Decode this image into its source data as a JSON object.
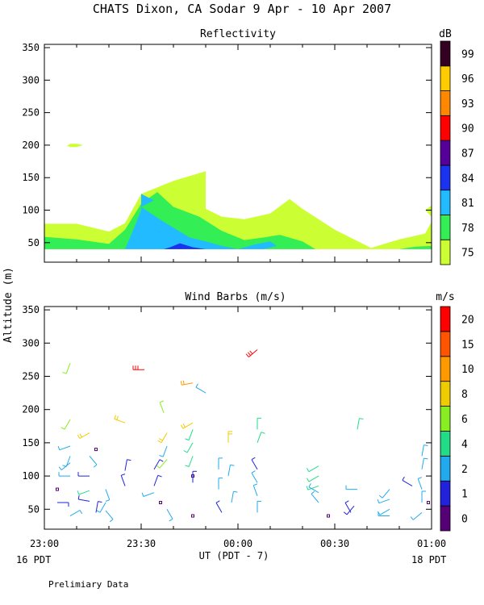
{
  "figure": {
    "title": "CHATS Dixon, CA  Sodar   9 Apr - 10 Apr 2007",
    "ylabel": "Altitude (m)",
    "xlabel": "UT  (PDT - 7)",
    "left_date": "16 PDT",
    "right_date": "18 PDT",
    "footer": "Prelimiary Data",
    "x_ticks": [
      "23:00",
      "23:30",
      "00:00",
      "00:30",
      "01:00"
    ]
  },
  "chart_data": [
    {
      "type": "heatmap",
      "title": "Reflectivity",
      "colorbar_unit": "dB",
      "x_ticks": [
        "23:00",
        "23:30",
        "00:00",
        "00:30",
        "01:00"
      ],
      "xlim_minutes": [
        0,
        120
      ],
      "y_ticks": [
        50,
        100,
        150,
        200,
        250,
        300,
        350
      ],
      "ylim": [
        20,
        355
      ],
      "grid": false,
      "colorbar": {
        "levels": [
          75,
          78,
          81,
          84,
          87,
          90,
          93,
          96,
          99
        ],
        "colors": [
          "#ccff33",
          "#33ee55",
          "#22bbff",
          "#1a33ee",
          "#550099",
          "#ff0000",
          "#ff8800",
          "#ffcc00",
          "#330022"
        ]
      },
      "contours": [
        {
          "level": 75,
          "polygon": [
            [
              0,
              40
            ],
            [
              0,
              79
            ],
            [
              10,
              79
            ],
            [
              20,
              67
            ],
            [
              25,
              80
            ],
            [
              30,
              125
            ],
            [
              40,
              145
            ],
            [
              50,
              160
            ],
            [
              50,
              102
            ],
            [
              55,
              90
            ],
            [
              62,
              86
            ],
            [
              70,
              95
            ],
            [
              76,
              117
            ],
            [
              80,
              102
            ],
            [
              90,
              70
            ],
            [
              102,
              40
            ]
          ]
        },
        {
          "level": 75,
          "polygon": [
            [
              7,
              199
            ],
            [
              8,
              202
            ],
            [
              10,
              202
            ],
            [
              12,
              200
            ],
            [
              10,
              197
            ],
            [
              8,
              197
            ]
          ]
        },
        {
          "level": 75,
          "polygon": [
            [
              100,
              40
            ],
            [
              110,
              55
            ],
            [
              118,
              64
            ],
            [
              120,
              82
            ],
            [
              120,
              40
            ]
          ]
        },
        {
          "level": 75,
          "polygon": [
            [
              118,
              100
            ],
            [
              120,
              107
            ],
            [
              120,
              90
            ]
          ]
        },
        {
          "level": 78,
          "polygon": [
            [
              0,
              40
            ],
            [
              0,
              59
            ],
            [
              10,
              55
            ],
            [
              20,
              48
            ],
            [
              25,
              70
            ],
            [
              30,
              110
            ],
            [
              35,
              128
            ],
            [
              40,
              105
            ],
            [
              48,
              90
            ],
            [
              55,
              68
            ],
            [
              62,
              54
            ],
            [
              68,
              58
            ],
            [
              73,
              62
            ],
            [
              80,
              52
            ],
            [
              84,
              40
            ]
          ]
        },
        {
          "level": 78,
          "polygon": [
            [
              110,
              40
            ],
            [
              115,
              44
            ],
            [
              120,
              45
            ],
            [
              120,
              40
            ]
          ]
        },
        {
          "level": 81,
          "polygon": [
            [
              25,
              40
            ],
            [
              28,
              75
            ],
            [
              30,
              100
            ],
            [
              30,
              125
            ],
            [
              34,
              115
            ],
            [
              30,
              105
            ],
            [
              36,
              85
            ],
            [
              45,
              58
            ],
            [
              50,
              52
            ],
            [
              55,
              45
            ],
            [
              60,
              40
            ],
            [
              65,
              47
            ],
            [
              70,
              52
            ],
            [
              72,
              45
            ],
            [
              68,
              40
            ]
          ]
        },
        {
          "level": 84,
          "polygon": [
            [
              37,
              40
            ],
            [
              39,
              43
            ],
            [
              42,
              49
            ],
            [
              46,
              43
            ],
            [
              50,
              40
            ]
          ]
        }
      ]
    },
    {
      "type": "scatter",
      "title": "Wind Barbs (m/s)",
      "colorbar_unit": "m/s",
      "x_ticks": [
        "23:00",
        "23:30",
        "00:00",
        "00:30",
        "01:00"
      ],
      "xlim_minutes": [
        0,
        120
      ],
      "y_ticks": [
        50,
        100,
        150,
        200,
        250,
        300,
        350
      ],
      "ylim": [
        20,
        355
      ],
      "grid": false,
      "colorbar": {
        "labels": [
          "0",
          "1",
          "2",
          "4",
          "6",
          "8",
          "10",
          "15",
          "20"
        ],
        "colors": [
          "#550077",
          "#2222dd",
          "#22aaee",
          "#22dd88",
          "#88ee22",
          "#eecc00",
          "#ff9900",
          "#ff5500",
          "#ff0000"
        ]
      },
      "barbs": [
        {
          "t": 4,
          "alt": 80,
          "speed": 0,
          "dir": 0
        },
        {
          "t": 4,
          "alt": 60,
          "speed": 1,
          "dir": 90
        },
        {
          "t": 8,
          "alt": 270,
          "speed": 6,
          "dir": 200
        },
        {
          "t": 8,
          "alt": 185,
          "speed": 6,
          "dir": 210
        },
        {
          "t": 8,
          "alt": 145,
          "speed": 3,
          "dir": 250
        },
        {
          "t": 8,
          "alt": 130,
          "speed": 3,
          "dir": 200
        },
        {
          "t": 8,
          "alt": 120,
          "speed": 3,
          "dir": 230
        },
        {
          "t": 8,
          "alt": 100,
          "speed": 3,
          "dir": 270
        },
        {
          "t": 8,
          "alt": 40,
          "speed": 3,
          "dir": 60
        },
        {
          "t": 14,
          "alt": 165,
          "speed": 8,
          "dir": 240
        },
        {
          "t": 14,
          "alt": 130,
          "speed": 3,
          "dir": 140
        },
        {
          "t": 14,
          "alt": 100,
          "speed": 1,
          "dir": 270
        },
        {
          "t": 14,
          "alt": 78,
          "speed": 5,
          "dir": 250
        },
        {
          "t": 14,
          "alt": 62,
          "speed": 1,
          "dir": 280
        },
        {
          "t": 16,
          "alt": 140,
          "speed": 0,
          "dir": 0
        },
        {
          "t": 16,
          "alt": 45,
          "speed": 1,
          "dir": 10
        },
        {
          "t": 19,
          "alt": 80,
          "speed": 3,
          "dir": 160
        },
        {
          "t": 19,
          "alt": 60,
          "speed": 3,
          "dir": 210
        },
        {
          "t": 19,
          "alt": 48,
          "speed": 3,
          "dir": 140
        },
        {
          "t": 25,
          "alt": 180,
          "speed": 8,
          "dir": 290
        },
        {
          "t": 25,
          "alt": 108,
          "speed": 1,
          "dir": 10
        },
        {
          "t": 25,
          "alt": 85,
          "speed": 1,
          "dir": 340
        },
        {
          "t": 31,
          "alt": 260,
          "speed": 20,
          "dir": 270
        },
        {
          "t": 34,
          "alt": 110,
          "speed": 1,
          "dir": 30
        },
        {
          "t": 34,
          "alt": 85,
          "speed": 1,
          "dir": 20
        },
        {
          "t": 34,
          "alt": 75,
          "speed": 3,
          "dir": 250
        },
        {
          "t": 36,
          "alt": 60,
          "speed": 0,
          "dir": 0
        },
        {
          "t": 37,
          "alt": 195,
          "speed": 6,
          "dir": 340
        },
        {
          "t": 38,
          "alt": 165,
          "speed": 8,
          "dir": 210
        },
        {
          "t": 38,
          "alt": 145,
          "speed": 3,
          "dir": 200
        },
        {
          "t": 38,
          "alt": 125,
          "speed": 6,
          "dir": 220
        },
        {
          "t": 38,
          "alt": 50,
          "speed": 3,
          "dir": 150
        },
        {
          "t": 46,
          "alt": 240,
          "speed": 10,
          "dir": 260
        },
        {
          "t": 46,
          "alt": 180,
          "speed": 8,
          "dir": 240
        },
        {
          "t": 46,
          "alt": 170,
          "speed": 4,
          "dir": 200
        },
        {
          "t": 46,
          "alt": 150,
          "speed": 4,
          "dir": 210
        },
        {
          "t": 46,
          "alt": 130,
          "speed": 4,
          "dir": 200
        },
        {
          "t": 46,
          "alt": 100,
          "speed": 0,
          "dir": 0
        },
        {
          "t": 46,
          "alt": 90,
          "speed": 1,
          "dir": 0
        },
        {
          "t": 46,
          "alt": 40,
          "speed": 0,
          "dir": 0
        },
        {
          "t": 50,
          "alt": 225,
          "speed": 2,
          "dir": 300
        },
        {
          "t": 54,
          "alt": 110,
          "speed": 2,
          "dir": 0
        },
        {
          "t": 54,
          "alt": 80,
          "speed": 2,
          "dir": 0
        },
        {
          "t": 55,
          "alt": 45,
          "speed": 1,
          "dir": 330
        },
        {
          "t": 57,
          "alt": 150,
          "speed": 8,
          "dir": 0
        },
        {
          "t": 57,
          "alt": 100,
          "speed": 3,
          "dir": 10
        },
        {
          "t": 58,
          "alt": 60,
          "speed": 3,
          "dir": 10
        },
        {
          "t": 66,
          "alt": 290,
          "speed": 20,
          "dir": 230
        },
        {
          "t": 66,
          "alt": 170,
          "speed": 4,
          "dir": 0
        },
        {
          "t": 66,
          "alt": 150,
          "speed": 4,
          "dir": 20
        },
        {
          "t": 66,
          "alt": 110,
          "speed": 1,
          "dir": 330
        },
        {
          "t": 66,
          "alt": 90,
          "speed": 3,
          "dir": 330
        },
        {
          "t": 66,
          "alt": 70,
          "speed": 3,
          "dir": 340
        },
        {
          "t": 66,
          "alt": 45,
          "speed": 2,
          "dir": 0
        },
        {
          "t": 85,
          "alt": 115,
          "speed": 4,
          "dir": 240
        },
        {
          "t": 85,
          "alt": 100,
          "speed": 4,
          "dir": 240
        },
        {
          "t": 85,
          "alt": 85,
          "speed": 4,
          "dir": 250
        },
        {
          "t": 85,
          "alt": 75,
          "speed": 2,
          "dir": 300
        },
        {
          "t": 85,
          "alt": 60,
          "speed": 2,
          "dir": 320
        },
        {
          "t": 88,
          "alt": 40,
          "speed": 0,
          "dir": 0
        },
        {
          "t": 97,
          "alt": 170,
          "speed": 4,
          "dir": 10
        },
        {
          "t": 97,
          "alt": 80,
          "speed": 2,
          "dir": 270
        },
        {
          "t": 96,
          "alt": 55,
          "speed": 1,
          "dir": 220
        },
        {
          "t": 95,
          "alt": 45,
          "speed": 1,
          "dir": 330
        },
        {
          "t": 107,
          "alt": 80,
          "speed": 2,
          "dir": 220
        },
        {
          "t": 107,
          "alt": 65,
          "speed": 2,
          "dir": 250
        },
        {
          "t": 107,
          "alt": 50,
          "speed": 2,
          "dir": 240
        },
        {
          "t": 107,
          "alt": 40,
          "speed": 2,
          "dir": 270
        },
        {
          "t": 114,
          "alt": 85,
          "speed": 1,
          "dir": 300
        },
        {
          "t": 117,
          "alt": 130,
          "speed": 2,
          "dir": 10
        },
        {
          "t": 117,
          "alt": 110,
          "speed": 2,
          "dir": 10
        },
        {
          "t": 117,
          "alt": 80,
          "speed": 2,
          "dir": 340
        },
        {
          "t": 117,
          "alt": 60,
          "speed": 2,
          "dir": 0
        },
        {
          "t": 117,
          "alt": 45,
          "speed": 2,
          "dir": 230
        },
        {
          "t": 119,
          "alt": 60,
          "speed": 0,
          "dir": 0
        }
      ]
    }
  ]
}
